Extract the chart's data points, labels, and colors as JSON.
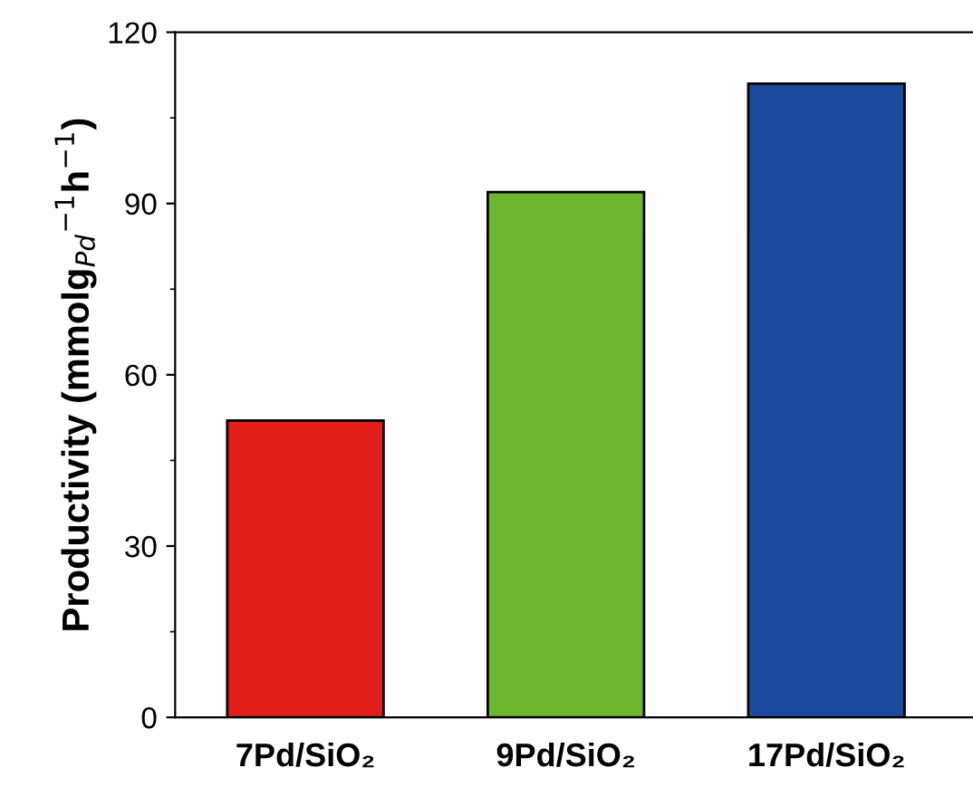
{
  "chart_data": {
    "type": "bar",
    "ylabel": "Productivity (mmolg$_{Pd}$$^{−1}$h$^{−1}$)",
    "categories": [
      "7Pd/SiO₂",
      "9Pd/SiO₂",
      "17Pd/SiO₂"
    ],
    "values": [
      52,
      92,
      111
    ],
    "colors": [
      "#e31f1c",
      "#6db730",
      "#1d4a9c"
    ],
    "ylim": [
      0,
      120
    ],
    "yticks": [
      0,
      30,
      60,
      90,
      120
    ],
    "grid": false,
    "legend": false
  }
}
